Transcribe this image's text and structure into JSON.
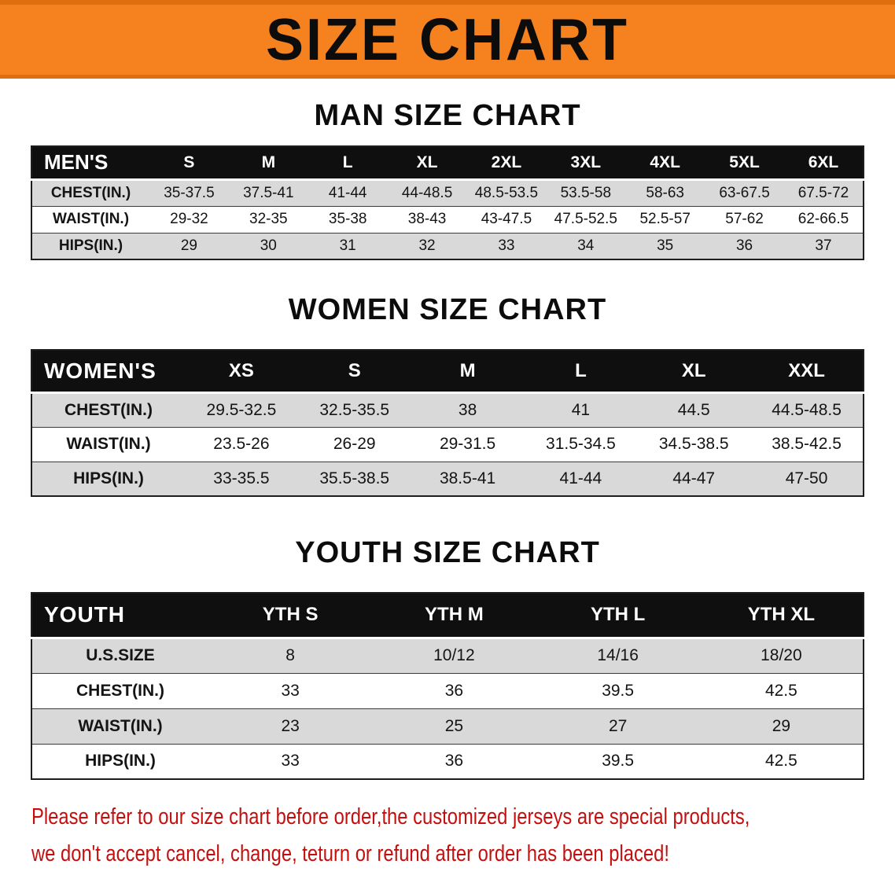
{
  "banner": {
    "title": "SIZE CHART"
  },
  "colors": {
    "banner_orange": "#f5821f",
    "banner_border": "#de6f10",
    "table_header": "#0f0f0f",
    "row_shade": "#d9d9d9",
    "disclaimer_red": "#c40f0f"
  },
  "sections": [
    {
      "id": "men",
      "heading": "MAN SIZE CHART",
      "table": {
        "label": "MEN'S",
        "columns": [
          "S",
          "M",
          "L",
          "XL",
          "2XL",
          "3XL",
          "4XL",
          "5XL",
          "6XL"
        ],
        "rows": [
          {
            "label": "CHEST(IN.)",
            "values": [
              "35-37.5",
              "37.5-41",
              "41-44",
              "44-48.5",
              "48.5-53.5",
              "53.5-58",
              "58-63",
              "63-67.5",
              "67.5-72"
            ]
          },
          {
            "label": "WAIST(IN.)",
            "values": [
              "29-32",
              "32-35",
              "35-38",
              "38-43",
              "43-47.5",
              "47.5-52.5",
              "52.5-57",
              "57-62",
              "62-66.5"
            ]
          },
          {
            "label": "HIPS(IN.)",
            "values": [
              "29",
              "30",
              "31",
              "32",
              "33",
              "34",
              "35",
              "36",
              "37"
            ]
          }
        ]
      }
    },
    {
      "id": "women",
      "heading": "WOMEN SIZE CHART",
      "table": {
        "label": "WOMEN'S",
        "columns": [
          "XS",
          "S",
          "M",
          "L",
          "XL",
          "XXL"
        ],
        "rows": [
          {
            "label": "CHEST(IN.)",
            "values": [
              "29.5-32.5",
              "32.5-35.5",
              "38",
              "41",
              "44.5",
              "44.5-48.5"
            ]
          },
          {
            "label": "WAIST(IN.)",
            "values": [
              "23.5-26",
              "26-29",
              "29-31.5",
              "31.5-34.5",
              "34.5-38.5",
              "38.5-42.5"
            ]
          },
          {
            "label": "HIPS(IN.)",
            "values": [
              "33-35.5",
              "35.5-38.5",
              "38.5-41",
              "41-44",
              "44-47",
              "47-50"
            ]
          }
        ]
      }
    },
    {
      "id": "youth",
      "heading": "YOUTH SIZE CHART",
      "table": {
        "label": "YOUTH",
        "columns": [
          "YTH S",
          "YTH M",
          "YTH L",
          "YTH XL"
        ],
        "rows": [
          {
            "label": "U.S.SIZE",
            "values": [
              "8",
              "10/12",
              "14/16",
              "18/20"
            ]
          },
          {
            "label": "CHEST(IN.)",
            "values": [
              "33",
              "36",
              "39.5",
              "42.5"
            ]
          },
          {
            "label": "WAIST(IN.)",
            "values": [
              "23",
              "25",
              "27",
              "29"
            ]
          },
          {
            "label": "HIPS(IN.)",
            "values": [
              "33",
              "36",
              "39.5",
              "42.5"
            ]
          }
        ]
      }
    }
  ],
  "disclaimer": {
    "lines": [
      "Please refer to our size chart before order,the customized jerseys are special products,",
      "we don't accept cancel, change, teturn or refund after order has been placed!"
    ]
  }
}
